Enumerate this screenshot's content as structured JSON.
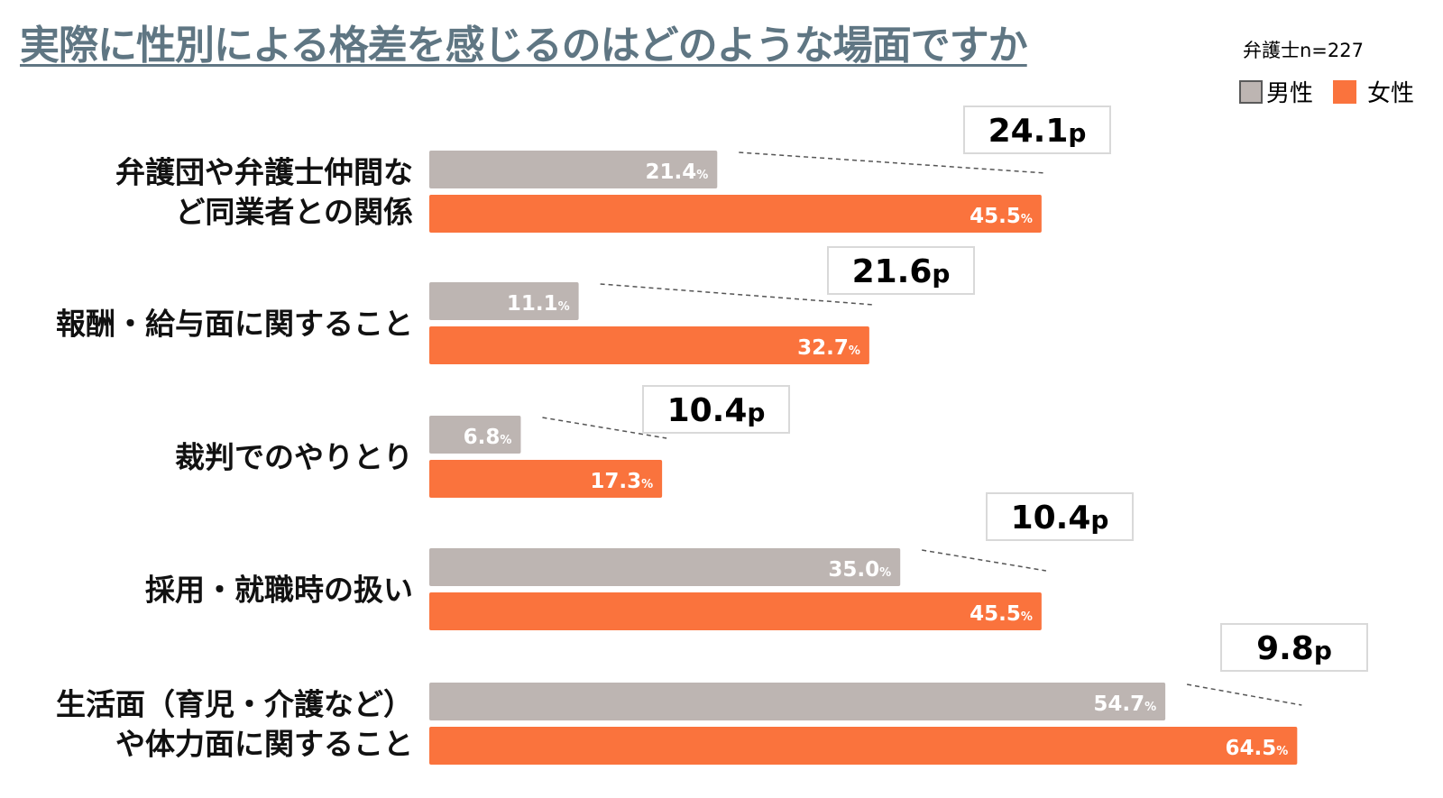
{
  "header": {
    "title": "実際に性別による格差を感じるのはどのような場面ですか",
    "sample": "弁護士n=227"
  },
  "legend": {
    "male": "男性",
    "female": "女性"
  },
  "colors": {
    "male": "#bdb5b2",
    "female": "#fa733d",
    "title": "#5f7683"
  },
  "chart_data": {
    "type": "bar",
    "orientation": "horizontal",
    "title": "実際に性別による格差を感じるのはどのような場面ですか",
    "note": "弁護士n=227",
    "value_suffix": "%",
    "diff_suffix": "p",
    "xlim": [
      0,
      80
    ],
    "categories": [
      [
        "弁護団や弁護士仲間な",
        "ど同業者との関係"
      ],
      [
        "報酬・給与面に関すること"
      ],
      [
        "裁判でのやりとり"
      ],
      [
        "採用・就職時の扱い"
      ],
      [
        "生活面（育児・介護など）",
        "や体力面に関すること"
      ]
    ],
    "series": [
      {
        "name": "男性",
        "values": [
          21.4,
          11.1,
          6.8,
          35.0,
          54.7
        ]
      },
      {
        "name": "女性",
        "values": [
          45.5,
          32.7,
          17.3,
          45.5,
          64.5
        ]
      }
    ],
    "differences": [
      24.1,
      21.6,
      10.4,
      10.4,
      9.8
    ]
  }
}
